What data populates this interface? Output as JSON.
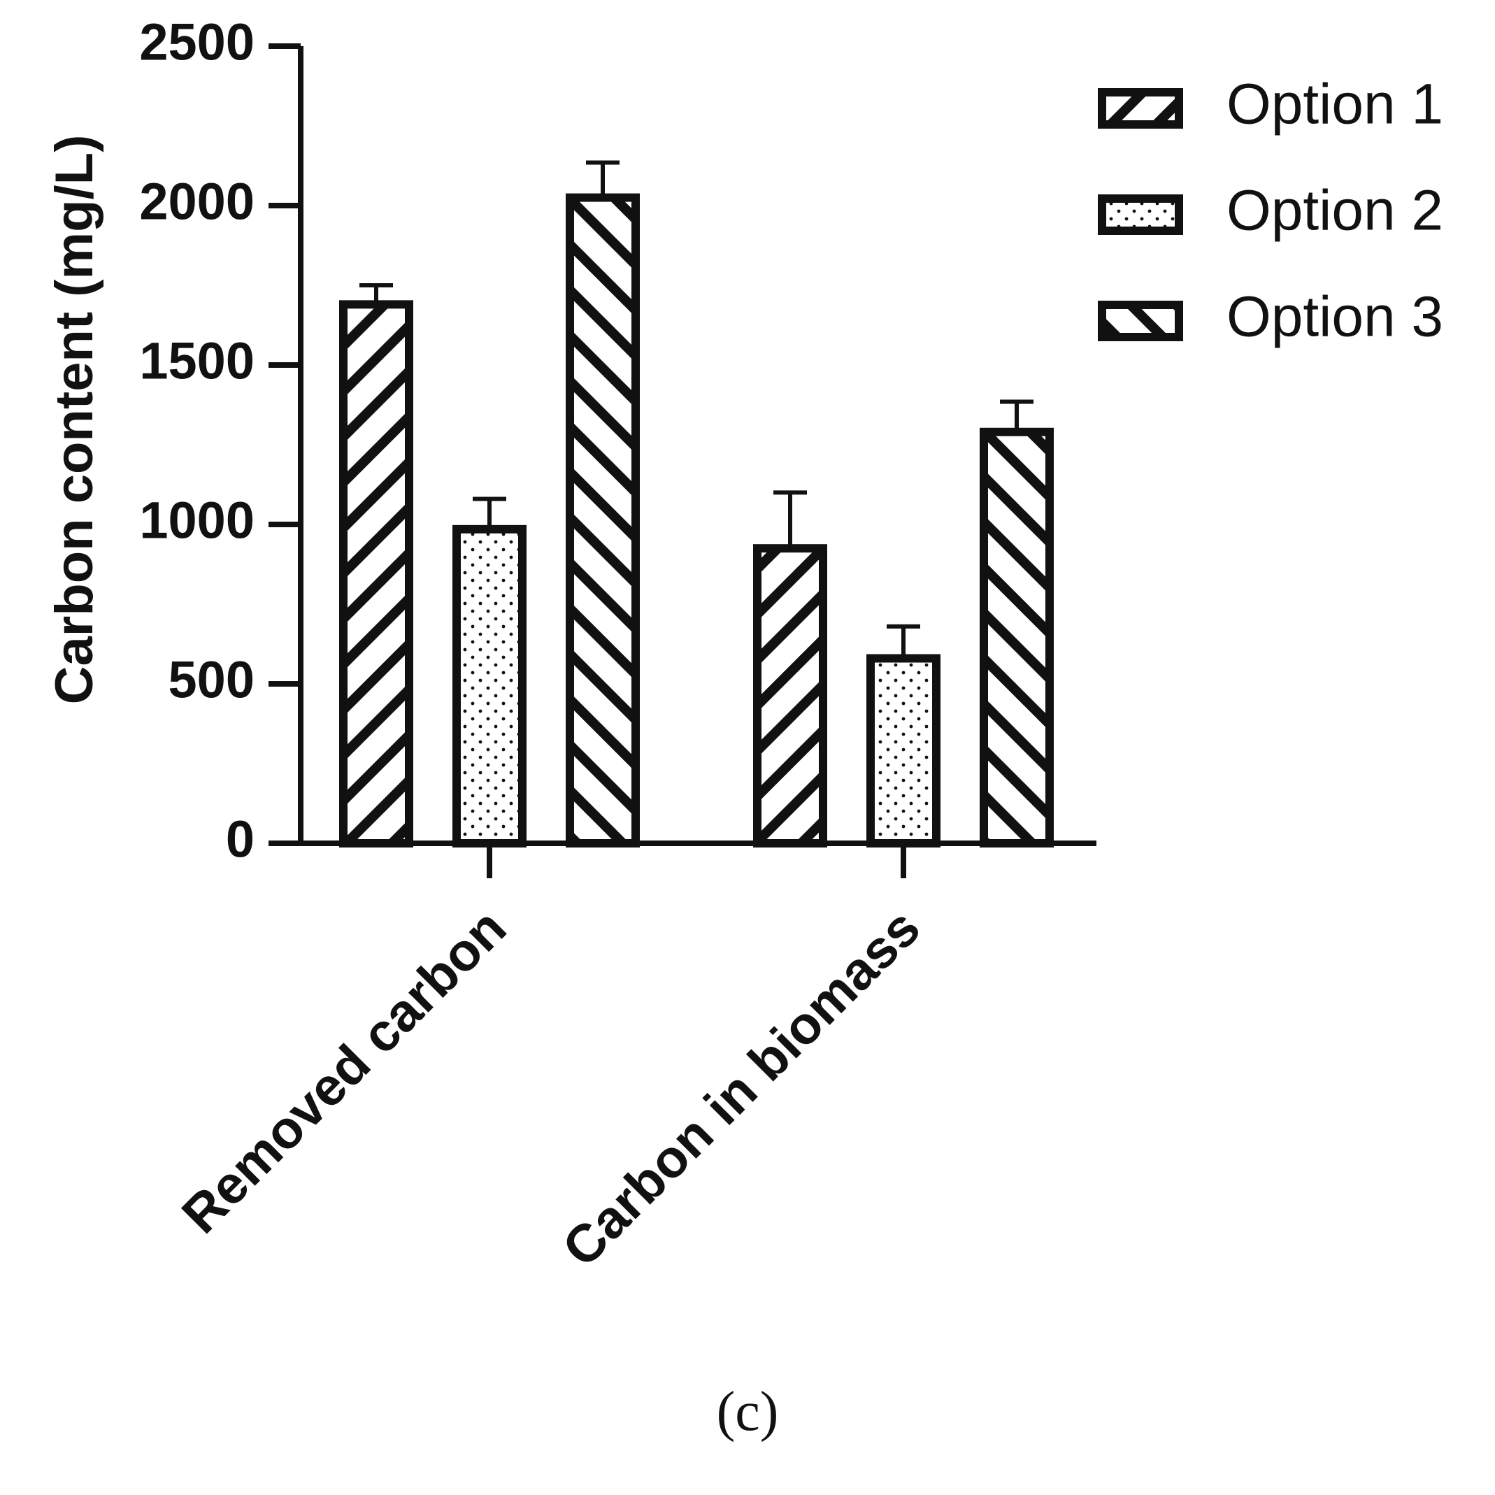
{
  "chart_data": {
    "type": "bar",
    "categories": [
      "Removed carbon",
      "Carbon in biomass"
    ],
    "series": [
      {
        "name": "Option 1",
        "values": [
          1690,
          925
        ],
        "errors": [
          60,
          175
        ],
        "pattern": "hatch-back"
      },
      {
        "name": "Option 2",
        "values": [
          985,
          580
        ],
        "errors": [
          95,
          100
        ],
        "pattern": "dots"
      },
      {
        "name": "Option 3",
        "values": [
          2025,
          1290
        ],
        "errors": [
          110,
          95
        ],
        "pattern": "hatch-forward"
      }
    ],
    "ylabel": "Carbon content (mg/L)",
    "xlabel": "",
    "ylim": [
      0,
      2500
    ],
    "yticks": [
      0,
      500,
      1000,
      1500,
      2000,
      2500
    ],
    "grid": false,
    "legend_position": "top-right",
    "colors": {
      "stroke": "#111111",
      "fill": "#ffffff"
    }
  },
  "panel_label": "(c)"
}
